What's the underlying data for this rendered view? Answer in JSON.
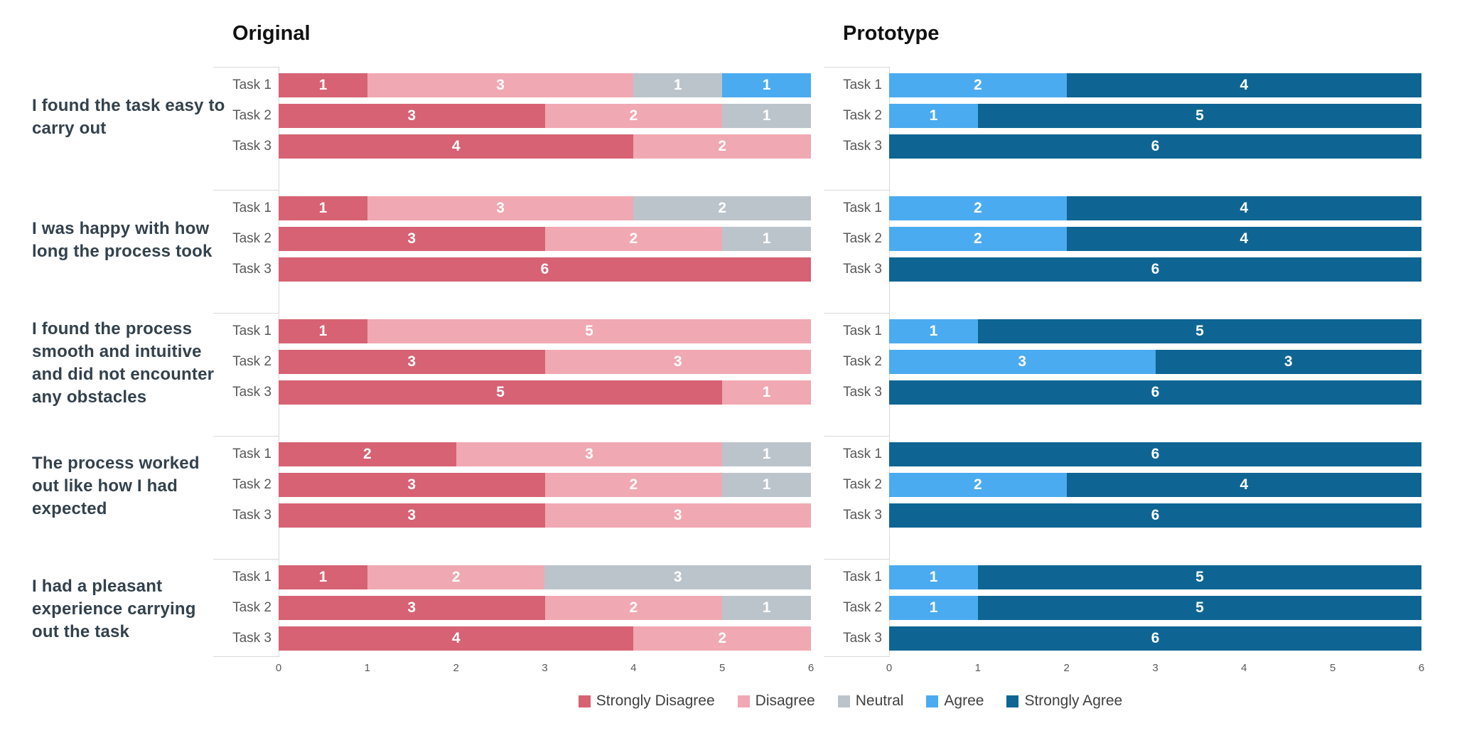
{
  "questions": [
    "I found the task easy to carry out",
    "I was happy with how long the process took",
    "I found the process smooth and intuitive and did not encounter any obstacles",
    "The process worked out like how I had expected",
    "I had a pleasant experience carrying out the task"
  ],
  "task_labels": [
    "Task 1",
    "Task 2",
    "Task 3"
  ],
  "legend": [
    {
      "label": "Strongly Disagree",
      "color": "#d66273"
    },
    {
      "label": "Disagree",
      "color": "#f0a8b2"
    },
    {
      "label": "Neutral",
      "color": "#bcc4cb"
    },
    {
      "label": "Agree",
      "color": "#4babf0"
    },
    {
      "label": "Strongly Agree",
      "color": "#0e6593"
    }
  ],
  "chart_data": {
    "type": "bar",
    "orientation": "horizontal",
    "stacked": true,
    "grid": false,
    "legend_position": "bottom",
    "xlim": [
      0,
      6
    ],
    "x_ticks": [
      "0",
      "1",
      "2",
      "3",
      "4",
      "5",
      "6"
    ],
    "series_names": [
      "Strongly Disagree",
      "Disagree",
      "Neutral",
      "Agree",
      "Strongly Agree"
    ],
    "charts": [
      {
        "title": "Original",
        "groups": [
          {
            "question": "I found the task easy to carry out",
            "rows": [
              [
                1,
                3,
                1,
                1,
                0
              ],
              [
                3,
                2,
                1,
                0,
                0
              ],
              [
                4,
                2,
                0,
                0,
                0
              ]
            ]
          },
          {
            "question": "I was happy with how long the process took",
            "rows": [
              [
                1,
                3,
                2,
                0,
                0
              ],
              [
                3,
                2,
                1,
                0,
                0
              ],
              [
                6,
                0,
                0,
                0,
                0
              ]
            ]
          },
          {
            "question": "I found the process smooth and intuitive and did not encounter any obstacles",
            "rows": [
              [
                1,
                5,
                0,
                0,
                0
              ],
              [
                3,
                3,
                0,
                0,
                0
              ],
              [
                5,
                1,
                0,
                0,
                0
              ]
            ]
          },
          {
            "question": "The process worked out like how I had expected",
            "rows": [
              [
                2,
                3,
                1,
                0,
                0
              ],
              [
                3,
                2,
                1,
                0,
                0
              ],
              [
                3,
                3,
                0,
                0,
                0
              ]
            ]
          },
          {
            "question": "I had a pleasant experience carrying out the task",
            "rows": [
              [
                1,
                2,
                3,
                0,
                0
              ],
              [
                3,
                2,
                1,
                0,
                0
              ],
              [
                4,
                2,
                0,
                0,
                0
              ]
            ]
          }
        ]
      },
      {
        "title": "Prototype",
        "groups": [
          {
            "question": "I found the task easy to carry out",
            "rows": [
              [
                0,
                0,
                0,
                2,
                4
              ],
              [
                0,
                0,
                0,
                1,
                5
              ],
              [
                0,
                0,
                0,
                0,
                6
              ]
            ]
          },
          {
            "question": "I was happy with how long the process took",
            "rows": [
              [
                0,
                0,
                0,
                2,
                4
              ],
              [
                0,
                0,
                0,
                2,
                4
              ],
              [
                0,
                0,
                0,
                0,
                6
              ]
            ]
          },
          {
            "question": "I found the process smooth and intuitive and did not encounter any obstacles",
            "rows": [
              [
                0,
                0,
                0,
                1,
                5
              ],
              [
                0,
                0,
                0,
                3,
                3
              ],
              [
                0,
                0,
                0,
                0,
                6
              ]
            ]
          },
          {
            "question": "The process worked out like how I had expected",
            "rows": [
              [
                0,
                0,
                0,
                0,
                6
              ],
              [
                0,
                0,
                0,
                2,
                4
              ],
              [
                0,
                0,
                0,
                0,
                6
              ]
            ]
          },
          {
            "question": "I had a pleasant experience carrying out the task",
            "rows": [
              [
                0,
                0,
                0,
                1,
                5
              ],
              [
                0,
                0,
                0,
                1,
                5
              ],
              [
                0,
                0,
                0,
                0,
                6
              ]
            ]
          }
        ]
      }
    ]
  }
}
